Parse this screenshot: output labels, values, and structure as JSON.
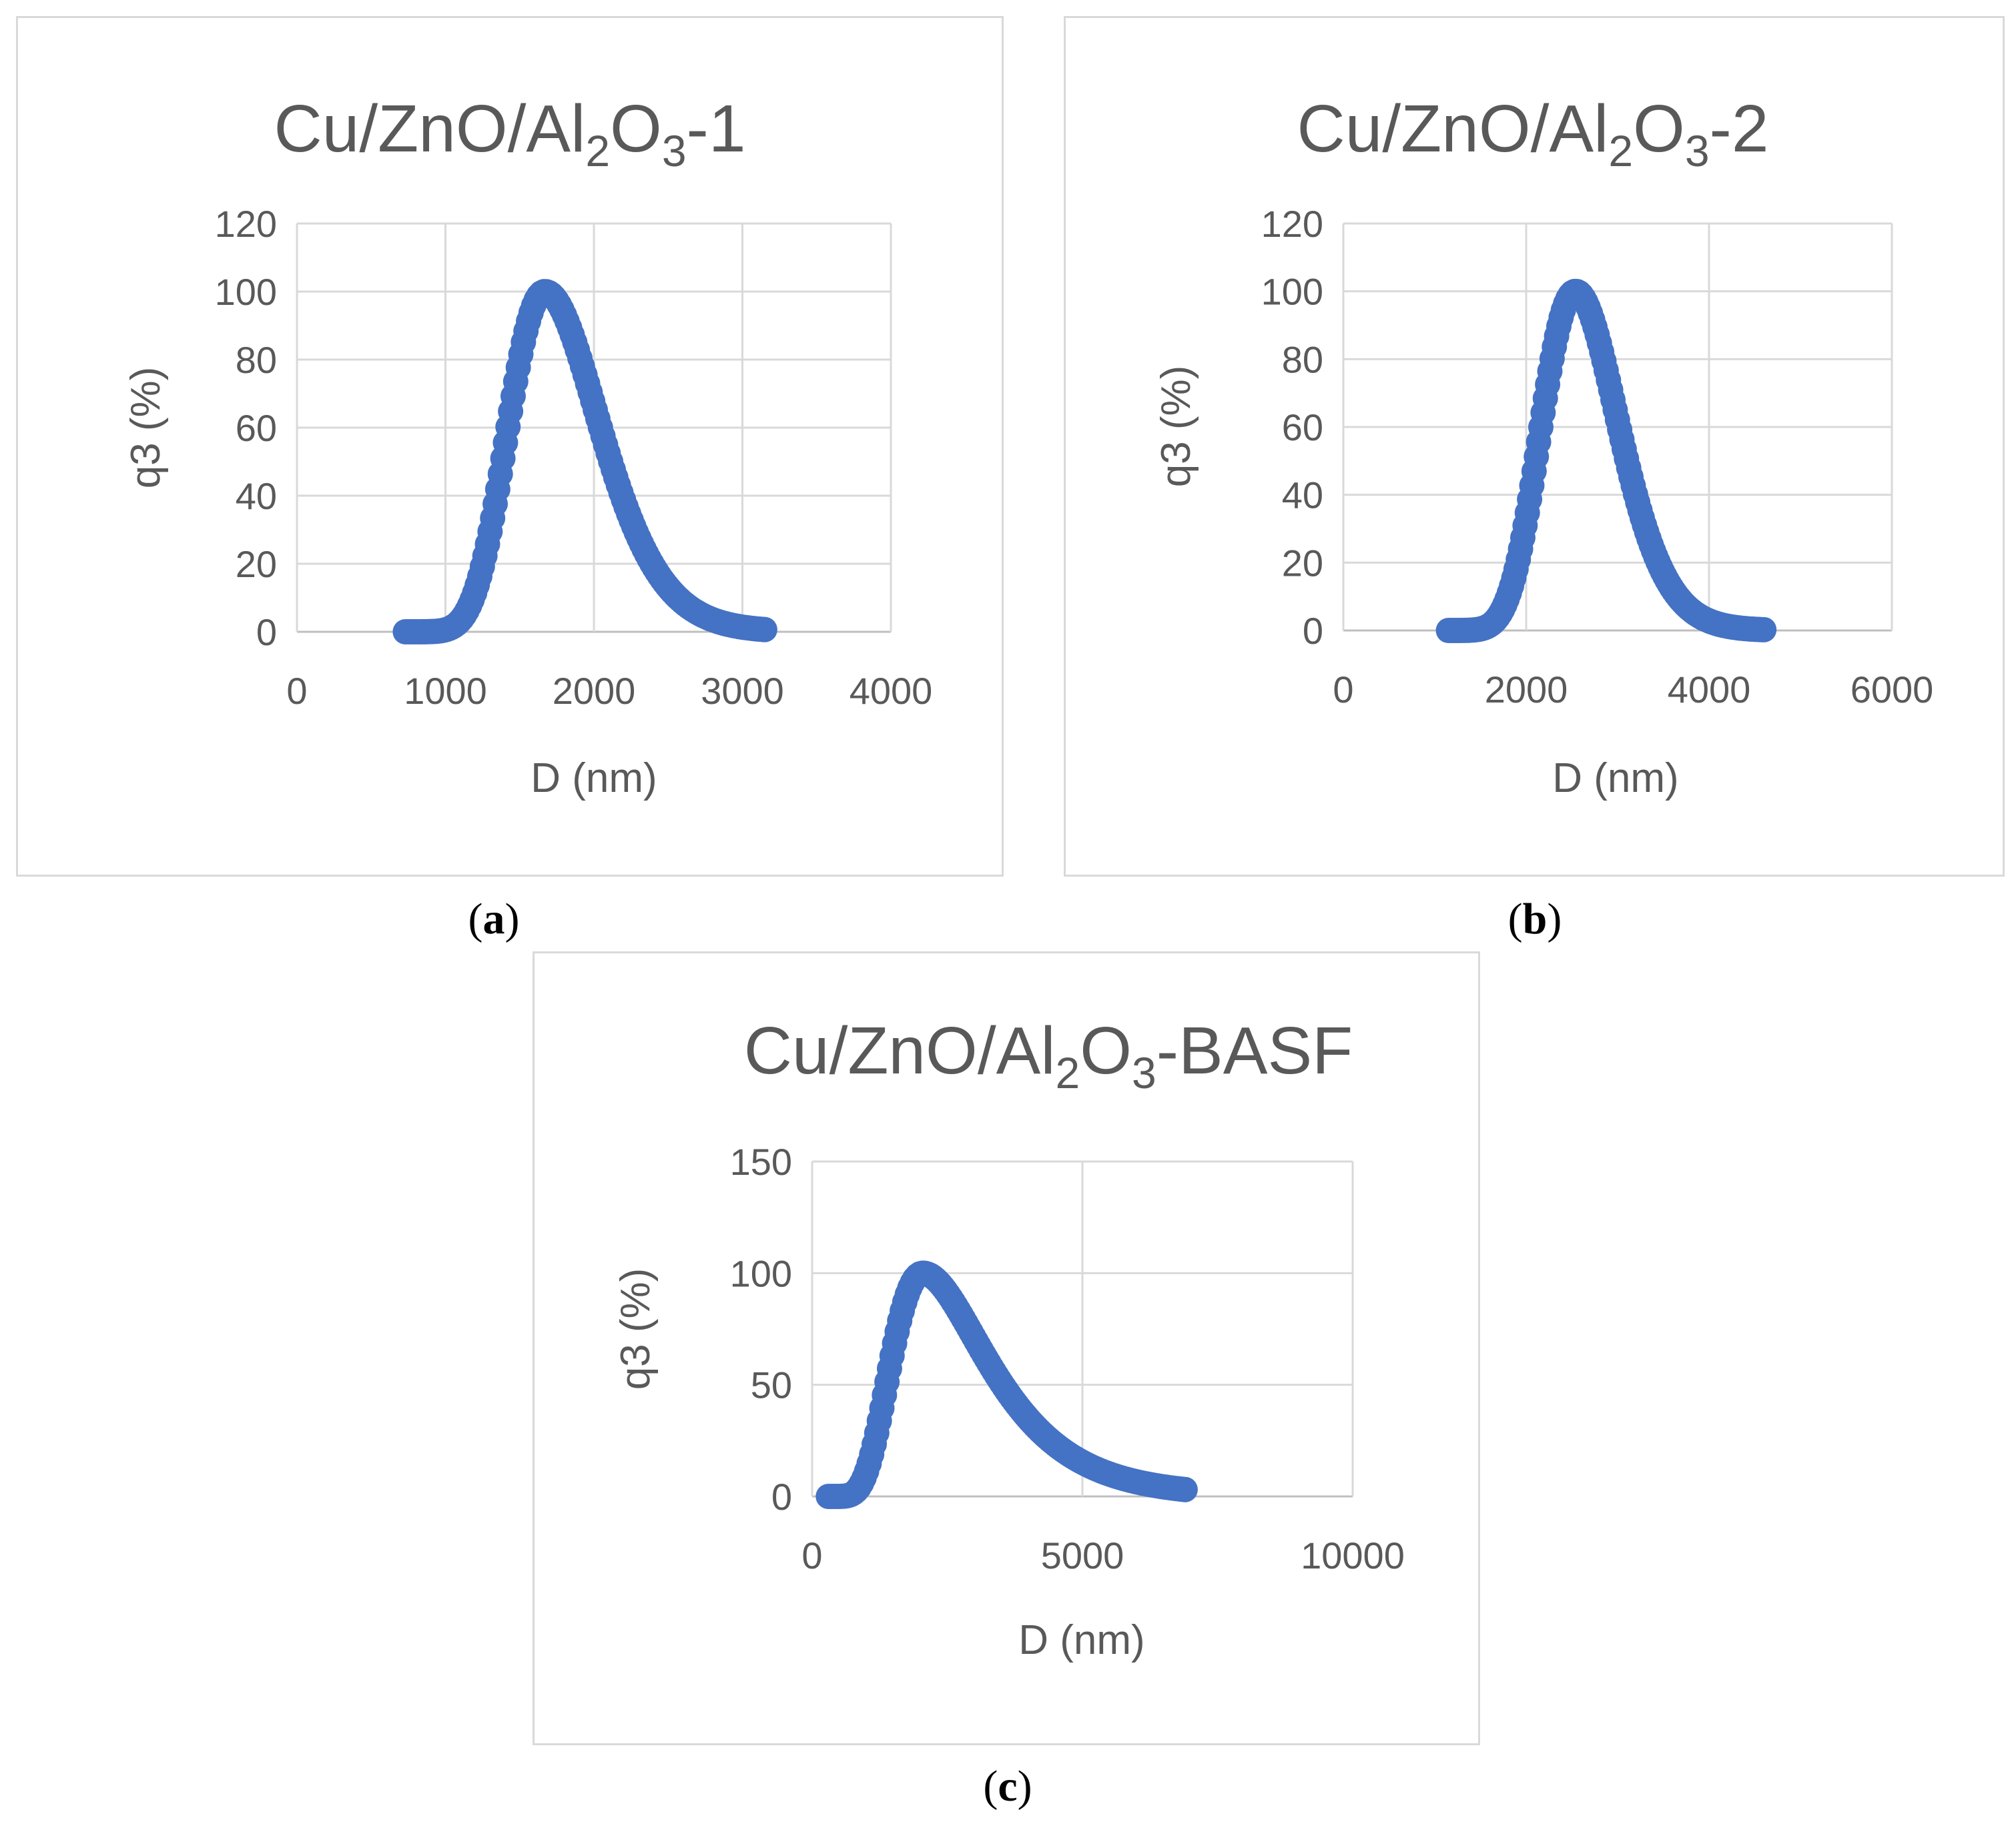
{
  "figure": {
    "panels": [
      {
        "id": "a",
        "label_prefix": "(",
        "label_letter": "a",
        "label_suffix": ")"
      },
      {
        "id": "b",
        "label_prefix": "(",
        "label_letter": "b",
        "label_suffix": ")"
      },
      {
        "id": "c",
        "label_prefix": "(",
        "label_letter": "c",
        "label_suffix": ")"
      }
    ]
  },
  "chart_data": [
    {
      "type": "scatter",
      "title_parts": {
        "base": "Cu/ZnO/Al",
        "sub1": "2",
        "mid": "O",
        "sub2": "3",
        "tail": "-1"
      },
      "xlabel": "D (nm)",
      "ylabel": "q3 (%)",
      "xlim": [
        0,
        4000
      ],
      "ylim": [
        0,
        120
      ],
      "xticks": [
        "0",
        "1000",
        "2000",
        "3000",
        "4000"
      ],
      "yticks": [
        "0",
        "20",
        "40",
        "60",
        "80",
        "100",
        "120"
      ],
      "grid": true,
      "series": [
        {
          "name": "q3",
          "color": "#4472c4",
          "x_min": 730,
          "x_max": 3150,
          "peak_x": 1670,
          "peak_y": 100,
          "sigma_left": 0.16,
          "sigma_right": 0.2
        }
      ]
    },
    {
      "type": "scatter",
      "title_parts": {
        "base": "Cu/ZnO/Al",
        "sub1": "2",
        "mid": "O",
        "sub2": "3",
        "tail": "-2"
      },
      "xlabel": "D (nm)",
      "ylabel": "q3 (%)",
      "xlim": [
        0,
        6000
      ],
      "ylim": [
        0,
        120
      ],
      "xticks": [
        "0",
        "2000",
        "4000",
        "6000"
      ],
      "yticks": [
        "0",
        "20",
        "40",
        "60",
        "80",
        "100",
        "120"
      ],
      "grid": true,
      "series": [
        {
          "name": "q3",
          "color": "#4472c4",
          "x_min": 1150,
          "x_max": 4600,
          "peak_x": 2540,
          "peak_y": 100,
          "sigma_left": 0.16,
          "sigma_right": 0.17
        }
      ]
    },
    {
      "type": "scatter",
      "title_parts": {
        "base": "Cu/ZnO/Al",
        "sub1": "2",
        "mid": "O",
        "sub2": "3",
        "tail": "-BASF"
      },
      "xlabel": "D (nm)",
      "ylabel": "q3 (%)",
      "xlim": [
        0,
        10000
      ],
      "ylim": [
        0,
        150
      ],
      "xticks": [
        "0",
        "5000",
        "10000"
      ],
      "yticks": [
        "0",
        "50",
        "100",
        "150"
      ],
      "grid": true,
      "series": [
        {
          "name": "q3",
          "color": "#4472c4",
          "x_min": 300,
          "x_max": 6900,
          "peak_x": 2050,
          "peak_y": 100,
          "sigma_left": 0.34,
          "sigma_right": 0.46
        }
      ]
    }
  ]
}
